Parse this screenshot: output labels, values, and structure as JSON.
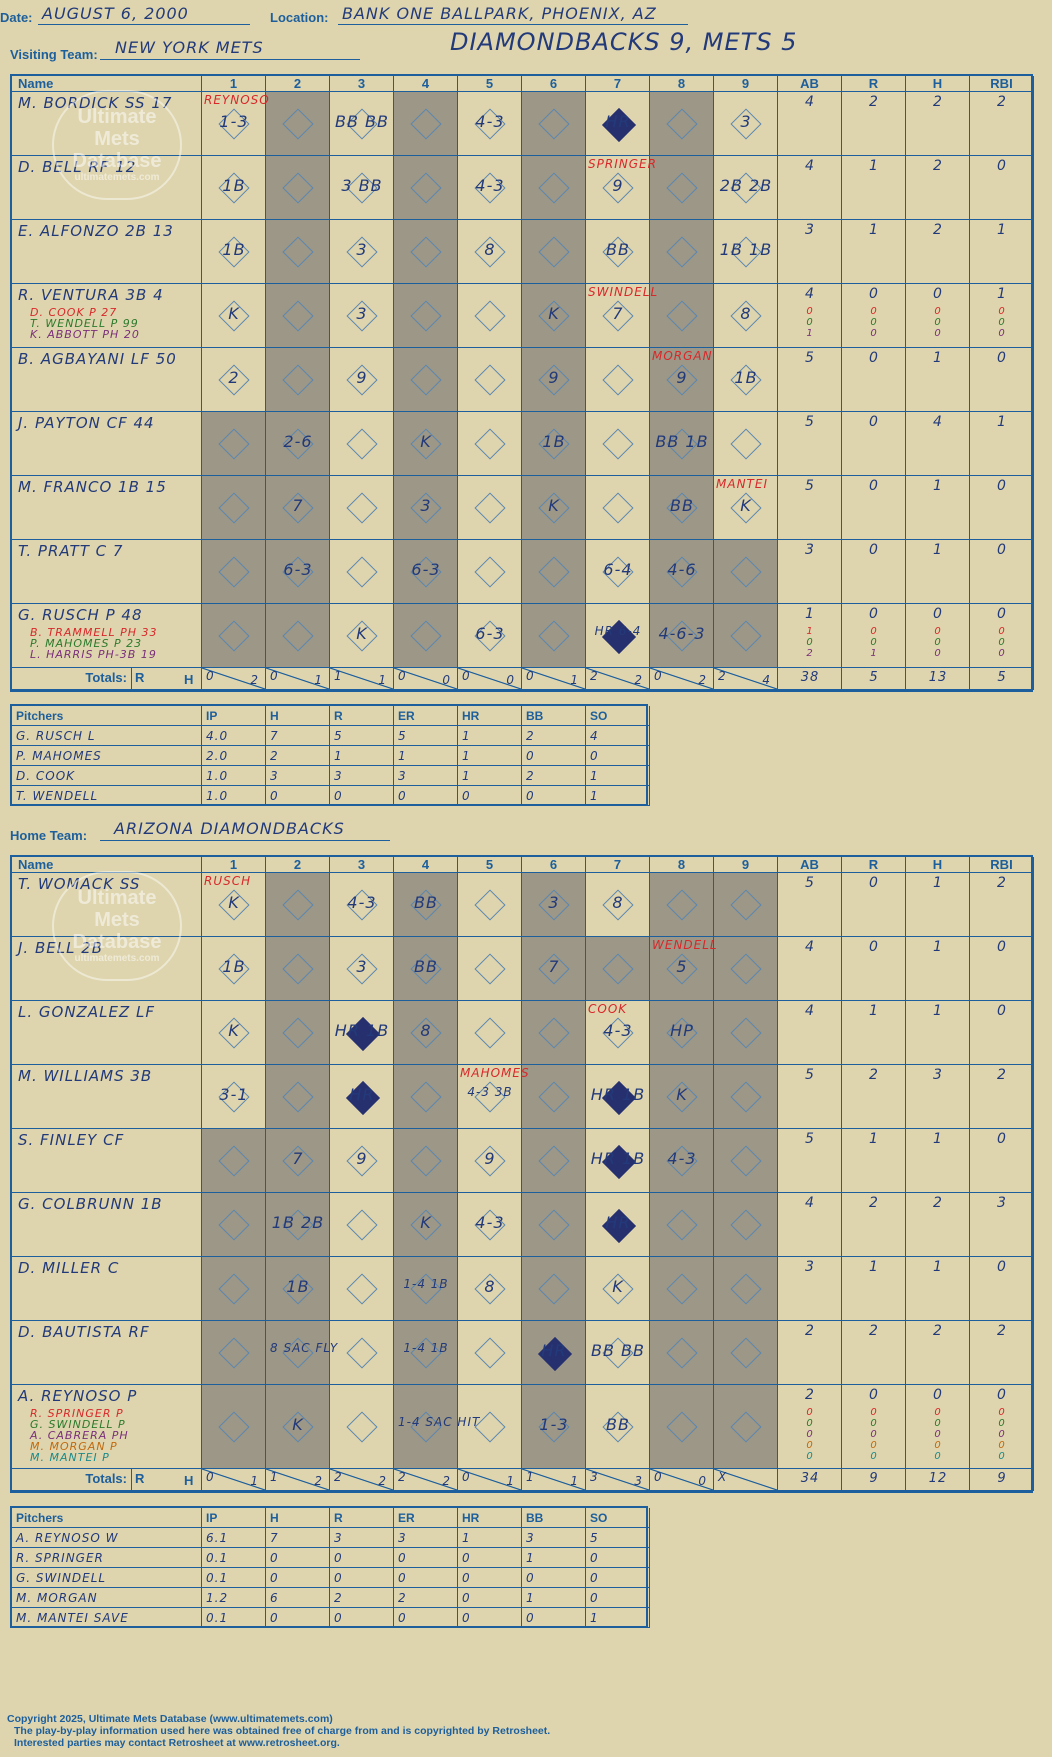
{
  "header": {
    "date_label": "Date:",
    "date": "AUGUST 6, 2000",
    "location_label": "Location:",
    "location": "BANK ONE BALLPARK, PHOENIX, AZ",
    "visiting_label": "Visiting Team:",
    "visiting_team": "NEW YORK METS",
    "score_title": "DIAMONDBACKS 9, METS 5",
    "home_label": "Home Team:",
    "home_team": "ARIZONA DIAMONDBACKS"
  },
  "grid_headers": {
    "name": "Name",
    "innings": [
      "1",
      "2",
      "3",
      "4",
      "5",
      "6",
      "7",
      "8",
      "9"
    ],
    "stats": [
      "AB",
      "R",
      "H",
      "RBI"
    ],
    "totals": "Totals:",
    "r": "R",
    "h": "H"
  },
  "watermark": {
    "line1": "Ultimate",
    "line2": "Mets",
    "line3": "Database",
    "line4": "ultimatemets.com"
  },
  "visitors": {
    "rows": [
      {
        "name": "M. BORDICK SS  17",
        "subs": [],
        "stats": [
          "4",
          "2",
          "2",
          "2"
        ]
      },
      {
        "name": "D. BELL RF  12",
        "subs": [],
        "stats": [
          "4",
          "1",
          "2",
          "0"
        ]
      },
      {
        "name": "E. ALFONZO 2B  13",
        "subs": [],
        "stats": [
          "3",
          "1",
          "2",
          "1"
        ]
      },
      {
        "name": "R. VENTURA 3B  4",
        "subs": [
          "D. COOK P  27",
          "T. WENDELL P  99",
          "K. ABBOTT PH  20"
        ],
        "stats": [
          "4",
          "0",
          "0",
          "1"
        ],
        "substats": [
          [
            "0",
            "0",
            "0",
            "0"
          ],
          [
            "0",
            "0",
            "0",
            "0"
          ],
          [
            "1",
            "0",
            "0",
            "0"
          ]
        ]
      },
      {
        "name": "B. AGBAYANI LF  50",
        "subs": [],
        "stats": [
          "5",
          "0",
          "1",
          "0"
        ]
      },
      {
        "name": "J. PAYTON CF  44",
        "subs": [],
        "stats": [
          "5",
          "0",
          "4",
          "1"
        ]
      },
      {
        "name": "M. FRANCO 1B  15",
        "subs": [],
        "stats": [
          "5",
          "0",
          "1",
          "0"
        ]
      },
      {
        "name": "T. PRATT C  7",
        "subs": [],
        "stats": [
          "3",
          "0",
          "1",
          "0"
        ]
      },
      {
        "name": "G. RUSCH P  48",
        "subs": [
          "B. TRAMMELL PH  33",
          "P. MAHOMES P  23",
          "L. HARRIS PH-3B  19"
        ],
        "stats": [
          "1",
          "0",
          "0",
          "0"
        ],
        "substats": [
          [
            "1",
            "0",
            "0",
            "0"
          ],
          [
            "0",
            "0",
            "0",
            "0"
          ],
          [
            "2",
            "1",
            "0",
            "0"
          ]
        ]
      }
    ],
    "plays": [
      [
        "1-3",
        "",
        "BB BB",
        "",
        "4-3",
        "",
        "HR",
        "",
        "3"
      ],
      [
        "1B",
        "",
        "3 BB",
        "",
        "4-3",
        "",
        "9",
        "",
        "2B 2B"
      ],
      [
        "1B",
        "",
        "3",
        "",
        "8",
        "",
        "BB",
        "",
        "1B 1B"
      ],
      [
        "K",
        "",
        "3",
        "",
        "",
        "K",
        "7",
        "",
        "8"
      ],
      [
        "2",
        "",
        "9",
        "",
        "",
        "9",
        "",
        "9",
        "1B"
      ],
      [
        "",
        "2-6",
        "",
        "K",
        "",
        "1B",
        "",
        "BB 1B",
        ""
      ],
      [
        "",
        "7",
        "",
        "3",
        "",
        "K",
        "",
        "BB",
        "K"
      ],
      [
        "",
        "6-3",
        "",
        "6-3",
        "",
        "",
        "6-4",
        "4-6",
        ""
      ],
      [
        "",
        "",
        "K",
        "",
        "6-3",
        "",
        "HR 6-4",
        "4-6-3",
        ""
      ]
    ],
    "pitcher_notes": [
      {
        "row": 0,
        "col": 0,
        "text": "REYNOSO"
      },
      {
        "row": 1,
        "col": 6,
        "text": "SPRINGER"
      },
      {
        "row": 3,
        "col": 6,
        "text": "SWINDELL"
      },
      {
        "row": 4,
        "col": 7,
        "text": "MORGAN"
      },
      {
        "row": 6,
        "col": 8,
        "text": "MANTEI"
      }
    ],
    "totals": [
      [
        "0",
        "2"
      ],
      [
        "0",
        "1"
      ],
      [
        "1",
        "1"
      ],
      [
        "0",
        "0"
      ],
      [
        "0",
        "0"
      ],
      [
        "0",
        "1"
      ],
      [
        "2",
        "2"
      ],
      [
        "0",
        "2"
      ],
      [
        "2",
        "4"
      ]
    ],
    "total_stats": [
      "38",
      "5",
      "13",
      "5"
    ]
  },
  "visitor_pitchers": {
    "headers": [
      "Pitchers",
      "IP",
      "H",
      "R",
      "ER",
      "HR",
      "BB",
      "SO"
    ],
    "rows": [
      [
        "G. RUSCH  L",
        "4.0",
        "7",
        "5",
        "5",
        "1",
        "2",
        "4"
      ],
      [
        "P. MAHOMES",
        "2.0",
        "2",
        "1",
        "1",
        "1",
        "0",
        "0"
      ],
      [
        "D. COOK",
        "1.0",
        "3",
        "3",
        "3",
        "1",
        "2",
        "1"
      ],
      [
        "T. WENDELL",
        "1.0",
        "0",
        "0",
        "0",
        "0",
        "0",
        "1"
      ]
    ]
  },
  "home": {
    "rows": [
      {
        "name": "T. WOMACK SS",
        "subs": [],
        "stats": [
          "5",
          "0",
          "1",
          "2"
        ]
      },
      {
        "name": "J. BELL 2B",
        "subs": [],
        "stats": [
          "4",
          "0",
          "1",
          "0"
        ]
      },
      {
        "name": "L. GONZALEZ LF",
        "subs": [],
        "stats": [
          "4",
          "1",
          "1",
          "0"
        ]
      },
      {
        "name": "M. WILLIAMS 3B",
        "subs": [],
        "stats": [
          "5",
          "2",
          "3",
          "2"
        ]
      },
      {
        "name": "S. FINLEY CF",
        "subs": [],
        "stats": [
          "5",
          "1",
          "1",
          "0"
        ]
      },
      {
        "name": "G. COLBRUNN 1B",
        "subs": [],
        "stats": [
          "4",
          "2",
          "2",
          "3"
        ]
      },
      {
        "name": "D. MILLER C",
        "subs": [],
        "stats": [
          "3",
          "1",
          "1",
          "0"
        ]
      },
      {
        "name": "D. BAUTISTA RF",
        "subs": [],
        "stats": [
          "2",
          "2",
          "2",
          "2"
        ]
      },
      {
        "name": "A. REYNOSO P",
        "subs": [
          "R. SPRINGER P",
          "G. SWINDELL P",
          "A. CABRERA PH",
          "M. MORGAN P",
          "M. MANTEI P"
        ],
        "stats": [
          "2",
          "0",
          "0",
          "0"
        ],
        "substats": [
          [
            "0",
            "0",
            "0",
            "0"
          ],
          [
            "0",
            "0",
            "0",
            "0"
          ],
          [
            "0",
            "0",
            "0",
            "0"
          ],
          [
            "0",
            "0",
            "0",
            "0"
          ],
          [
            "0",
            "0",
            "0",
            "0"
          ]
        ]
      }
    ],
    "plays": [
      [
        "K",
        "",
        "4-3",
        "BB",
        "",
        "3",
        "8",
        "",
        ""
      ],
      [
        "1B",
        "",
        "3",
        "BB",
        "",
        "7",
        "",
        "5",
        ""
      ],
      [
        "K",
        "",
        "HR 1B",
        "8",
        "",
        "",
        "4-3",
        "HP",
        ""
      ],
      [
        "3-1",
        "",
        "HR",
        "",
        "4-3 3B",
        "",
        "HR 1B",
        "K",
        ""
      ],
      [
        "",
        "7",
        "9",
        "",
        "9",
        "",
        "HR 1B",
        "4-3",
        ""
      ],
      [
        "",
        "1B 2B",
        "",
        "K",
        "4-3",
        "",
        "HR",
        "",
        ""
      ],
      [
        "",
        "1B",
        "",
        "1-4 1B",
        "8",
        "",
        "K",
        "",
        ""
      ],
      [
        "",
        "8 SAC FLY",
        "",
        "1-4 1B",
        "",
        "HR",
        "BB BB",
        "",
        ""
      ],
      [
        "",
        "K",
        "",
        "1-4 SAC HIT",
        "",
        "1-3",
        "BB",
        "",
        ""
      ]
    ],
    "pitcher_notes": [
      {
        "row": 0,
        "col": 0,
        "text": "RUSCH"
      },
      {
        "row": 1,
        "col": 7,
        "text": "WENDELL"
      },
      {
        "row": 2,
        "col": 6,
        "text": "COOK"
      },
      {
        "row": 3,
        "col": 4,
        "text": "MAHOMES"
      }
    ],
    "totals": [
      [
        "0",
        "1"
      ],
      [
        "1",
        "2"
      ],
      [
        "2",
        "2"
      ],
      [
        "2",
        "2"
      ],
      [
        "0",
        "1"
      ],
      [
        "1",
        "1"
      ],
      [
        "3",
        "3"
      ],
      [
        "0",
        "0"
      ],
      [
        "X",
        ""
      ]
    ],
    "total_stats": [
      "34",
      "9",
      "12",
      "9"
    ]
  },
  "home_pitchers": {
    "headers": [
      "Pitchers",
      "IP",
      "H",
      "R",
      "ER",
      "HR",
      "BB",
      "SO"
    ],
    "rows": [
      [
        "A. REYNOSO  W",
        "6.1",
        "7",
        "3",
        "3",
        "1",
        "3",
        "5"
      ],
      [
        "R. SPRINGER",
        "0.1",
        "0",
        "0",
        "0",
        "0",
        "1",
        "0"
      ],
      [
        "G. SWINDELL",
        "0.1",
        "0",
        "0",
        "0",
        "0",
        "0",
        "0"
      ],
      [
        "M. MORGAN",
        "1.2",
        "6",
        "2",
        "2",
        "0",
        "1",
        "0"
      ],
      [
        "M. MANTEI  SAVE",
        "0.1",
        "0",
        "0",
        "0",
        "0",
        "0",
        "1"
      ]
    ]
  },
  "footer": {
    "line1": "Copyright 2025, Ultimate Mets Database (www.ultimatemets.com)",
    "line2": "The play-by-play information used here was obtained free of charge from and is copyrighted by Retrosheet.",
    "line3": "Interested parties may contact Retrosheet at www.retrosheet.org."
  },
  "colors": {
    "background": "#ded5ae",
    "ink": "#1d5f9c",
    "shade": "#9c9786",
    "run_diamond": "#27306e",
    "pitcher_change": "#d8282a"
  }
}
